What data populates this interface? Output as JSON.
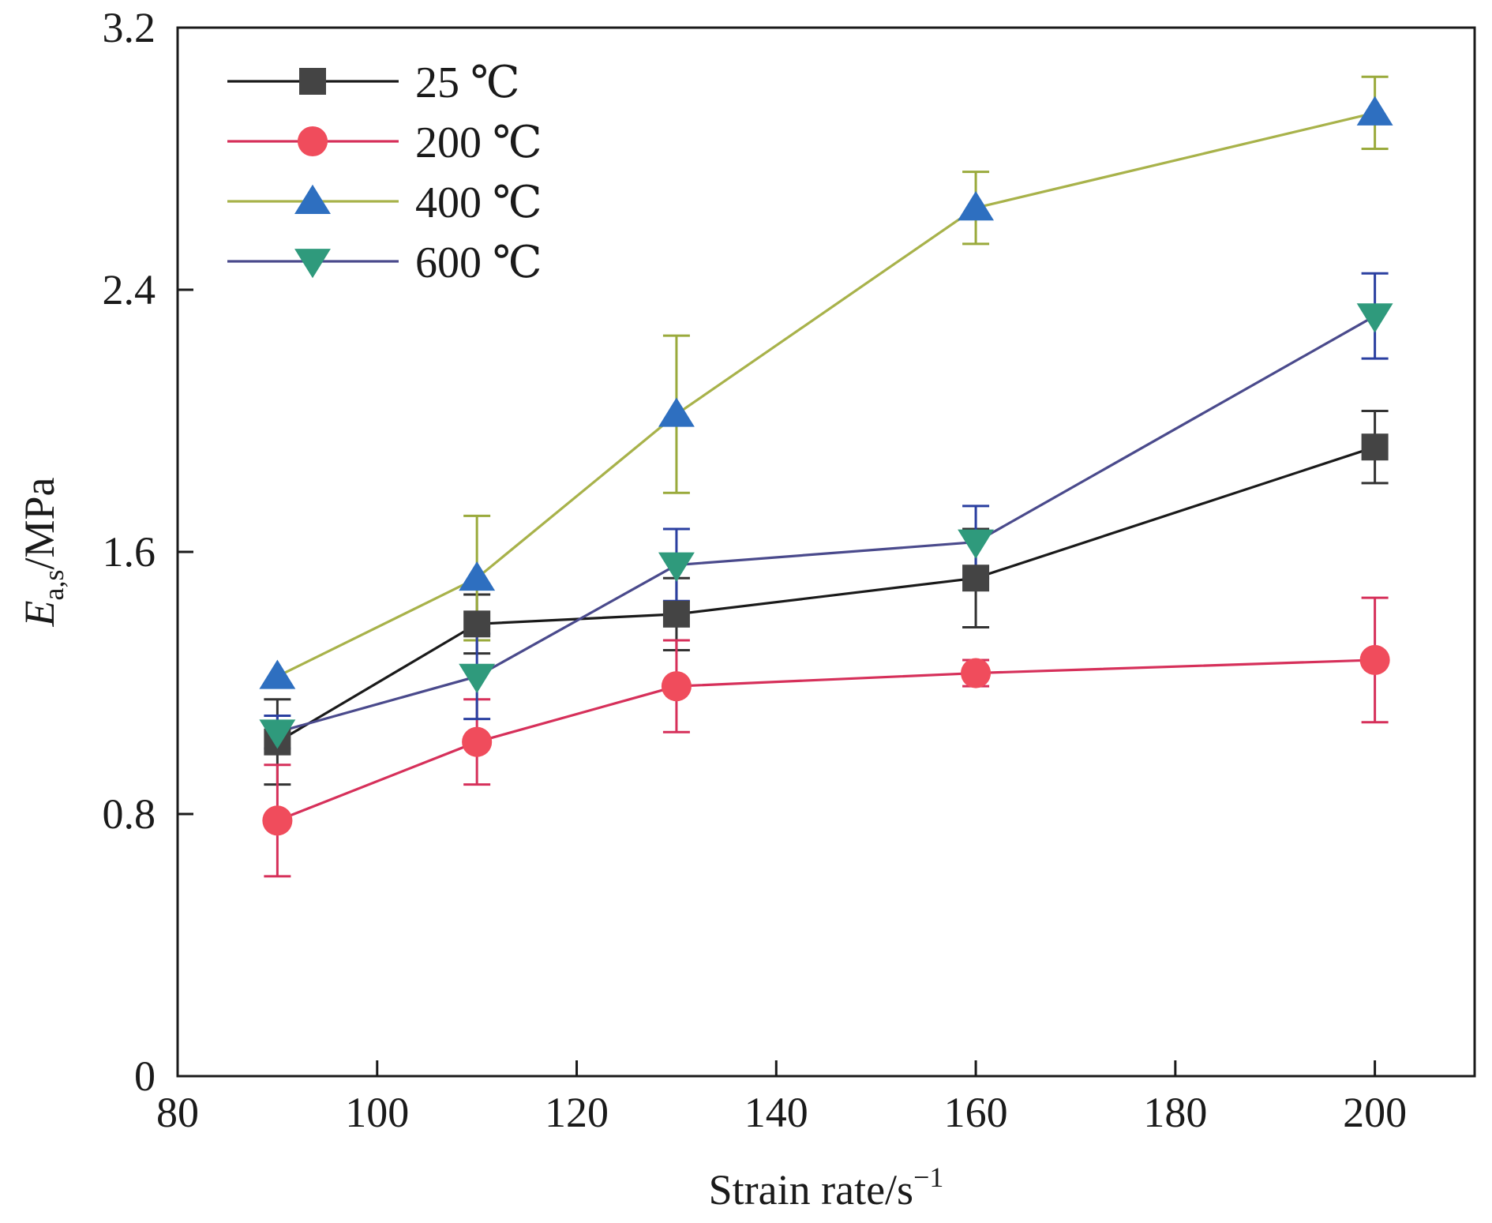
{
  "chart_data": {
    "type": "line",
    "xlabel": "Strain rate/s",
    "xlabel_superscript": "−1",
    "ylabel_symbol": "E",
    "ylabel_subscript": "a,s",
    "ylabel_unit": "/MPa",
    "xlim": [
      80,
      210
    ],
    "ylim": [
      0,
      3.2
    ],
    "xticks": [
      80,
      100,
      120,
      140,
      160,
      180,
      200
    ],
    "xtick_labels": [
      "80",
      "100",
      "120",
      "140",
      "160",
      "180",
      "200"
    ],
    "yticks": [
      0,
      0.8,
      1.6,
      2.4,
      3.2
    ],
    "ytick_labels": [
      "0",
      "0.8",
      "1.6",
      "2.4",
      "3.2"
    ],
    "grid": false,
    "legend_position": "top-left",
    "x": [
      90,
      110,
      130,
      160,
      200
    ],
    "series": [
      {
        "name": "25 ℃",
        "marker": "square",
        "line_color": "#1a1a1a",
        "marker_color": "#444444",
        "error_color": "#333333",
        "values": [
          1.02,
          1.38,
          1.41,
          1.52,
          1.92
        ],
        "errors": [
          0.13,
          0.09,
          0.11,
          0.15,
          0.11
        ]
      },
      {
        "name": "200 ℃",
        "marker": "circle",
        "line_color": "#d6305a",
        "marker_color": "#f04c5c",
        "error_color": "#d6305a",
        "values": [
          0.78,
          1.02,
          1.19,
          1.23,
          1.27
        ],
        "errors": [
          0.17,
          0.13,
          0.14,
          0.04,
          0.19
        ]
      },
      {
        "name": "400 ℃",
        "marker": "triangle-up",
        "line_color": "#a8b24a",
        "marker_color": "#2e6fc0",
        "error_color": "#9aaa3c",
        "values": [
          1.22,
          1.52,
          2.02,
          2.65,
          2.94
        ],
        "errors": [
          0.0,
          0.19,
          0.24,
          0.11,
          0.11
        ]
      },
      {
        "name": "600 ℃",
        "marker": "triangle-down",
        "line_color": "#4a4a8c",
        "marker_color": "#2f9a7c",
        "error_color": "#2a3fa0",
        "values": [
          1.05,
          1.22,
          1.56,
          1.63,
          2.32
        ],
        "errors": [
          0.05,
          0.13,
          0.11,
          0.11,
          0.13
        ]
      }
    ]
  }
}
